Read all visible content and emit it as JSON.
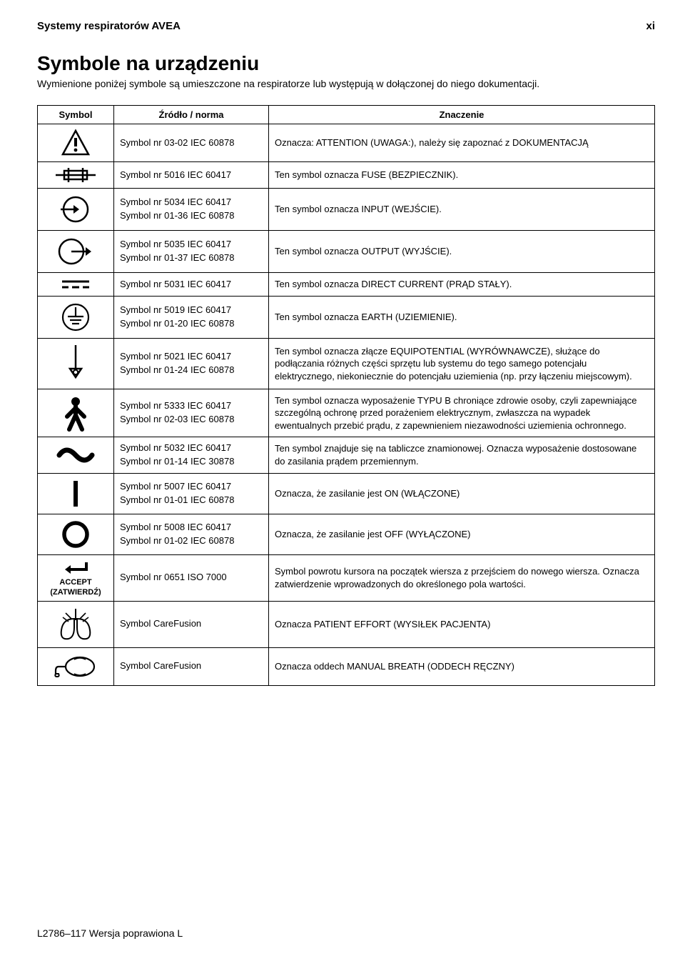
{
  "header": {
    "left": "Systemy respiratorów AVEA",
    "right": "xi"
  },
  "title": "Symbole na urządzeniu",
  "intro": "Wymienione poniżej symbole są umieszczone na respiratorze lub występują w dołączonej do niego dokumentacji.",
  "columns": {
    "c0": "Symbol",
    "c1": "Źródło / norma",
    "c2": "Znaczenie"
  },
  "rows": [
    {
      "icon": "warning",
      "src": [
        "Symbol nr 03-02 IEC 60878"
      ],
      "meaning": "Oznacza: ATTENTION (UWAGA:), należy się zapoznać z DOKUMENTACJĄ"
    },
    {
      "icon": "fuse",
      "src": [
        "Symbol nr 5016 IEC 60417"
      ],
      "meaning": "Ten symbol oznacza FUSE (BEZPIECZNIK)."
    },
    {
      "icon": "input",
      "src": [
        "Symbol nr 5034 IEC 60417",
        "Symbol nr 01-36 IEC 60878"
      ],
      "meaning": "Ten symbol oznacza INPUT (WEJŚCIE)."
    },
    {
      "icon": "output",
      "src": [
        "Symbol nr 5035 IEC 60417",
        "Symbol nr 01-37 IEC 60878"
      ],
      "meaning": "Ten symbol oznacza OUTPUT (WYJŚCIE)."
    },
    {
      "icon": "dc",
      "src": [
        "Symbol nr 5031 IEC 60417"
      ],
      "meaning": "Ten symbol oznacza DIRECT CURRENT (PRĄD STAŁY)."
    },
    {
      "icon": "earth",
      "src": [
        "Symbol nr 5019 IEC 60417",
        "Symbol nr 01-20 IEC 60878"
      ],
      "meaning": "Ten symbol oznacza EARTH (UZIEMIENIE)."
    },
    {
      "icon": "equipotential",
      "src": [
        "Symbol nr 5021 IEC 60417",
        "Symbol nr 01-24 IEC 60878"
      ],
      "meaning": "Ten symbol oznacza złącze EQUIPOTENTIAL (WYRÓWNAWCZE), służące do podłączania różnych części sprzętu lub systemu do tego samego potencjału elektrycznego, niekoniecznie do potencjału uziemienia (np. przy łączeniu miejscowym)."
    },
    {
      "icon": "typeb",
      "src": [
        "Symbol nr 5333 IEC 60417",
        "Symbol nr 02-03 IEC 60878"
      ],
      "meaning": "Ten symbol oznacza wyposażenie TYPU B chroniące zdrowie osoby, czyli zapewniające szczególną ochronę przed porażeniem elektrycznym, zwłaszcza na wypadek ewentualnych przebić prądu, z zapewnieniem niezawodności uziemienia ochronnego."
    },
    {
      "icon": "ac",
      "src": [
        "Symbol nr 5032 IEC 60417",
        "Symbol nr 01-14 IEC 30878"
      ],
      "meaning": "Ten symbol znajduje się na tabliczce znamionowej. Oznacza wyposażenie dostosowane do zasilania prądem przemiennym."
    },
    {
      "icon": "on",
      "src": [
        "Symbol nr 5007 IEC 60417",
        "Symbol nr 01-01 IEC 60878"
      ],
      "meaning": "Oznacza, że zasilanie jest ON (WŁĄCZONE)"
    },
    {
      "icon": "off",
      "src": [
        "Symbol nr 5008 IEC 60417",
        "Symbol nr 01-02 IEC 60878"
      ],
      "meaning": "Oznacza, że zasilanie jest OFF (WYŁĄCZONE)"
    },
    {
      "icon": "accept",
      "label1": "ACCEPT",
      "label2": "(ZATWIERDŹ)",
      "src": [
        "Symbol nr 0651 ISO 7000"
      ],
      "meaning": "Symbol powrotu kursora na początek wiersza z przejściem do nowego wiersza. Oznacza zatwierdzenie wprowadzonych do określonego pola wartości."
    },
    {
      "icon": "lungs",
      "src": [
        "Symbol CareFusion"
      ],
      "meaning": "Oznacza PATIENT EFFORT (WYSIŁEK PACJENTA)"
    },
    {
      "icon": "bag",
      "src": [
        "Symbol CareFusion"
      ],
      "meaning": "Oznacza oddech MANUAL BREATH (ODDECH RĘCZNY)"
    }
  ],
  "footer": "L2786–117 Wersja poprawiona L"
}
